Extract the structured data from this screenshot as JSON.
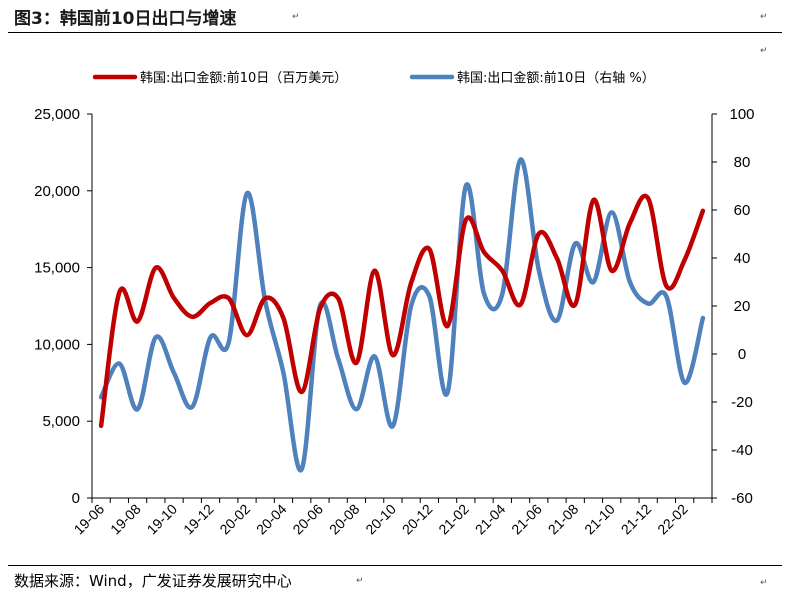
{
  "page": {
    "title": "图3：韩国前10日出口与增速",
    "source": "数据来源：Wind，广发证券发展研究中心",
    "paragraph_mark": "↵"
  },
  "chart_data": {
    "type": "line",
    "title": "韩国前10日出口与增速",
    "categories": [
      "19-06",
      "19-07",
      "19-08",
      "19-09",
      "19-10",
      "19-11",
      "19-12",
      "20-01",
      "20-02",
      "20-03",
      "20-04",
      "20-05",
      "20-06",
      "20-07",
      "20-08",
      "20-09",
      "20-10",
      "20-11",
      "20-12",
      "21-01",
      "21-02",
      "21-03",
      "21-04",
      "21-05",
      "21-06",
      "21-07",
      "21-08",
      "21-09",
      "21-10",
      "21-11",
      "21-12",
      "22-01",
      "22-02",
      "22-03"
    ],
    "x_tick_labels": [
      "19-06",
      "19-08",
      "19-10",
      "19-12",
      "20-02",
      "20-04",
      "20-06",
      "20-08",
      "20-10",
      "20-12",
      "21-02",
      "21-04",
      "21-06",
      "21-08",
      "21-10",
      "21-12",
      "22-02"
    ],
    "series": [
      {
        "name": "韩国:出口金额:前10日（百万美元）",
        "axis": "left",
        "color": "#C00000",
        "values": [
          4700,
          13400,
          11500,
          15000,
          13000,
          11800,
          12700,
          13000,
          10600,
          13000,
          11700,
          6900,
          12300,
          13000,
          8800,
          14800,
          9300,
          14000,
          16200,
          11200,
          18100,
          16000,
          14800,
          12600,
          17200,
          15600,
          12600,
          19400,
          14800,
          17900,
          19500,
          13800,
          15500,
          18700
        ]
      },
      {
        "name": "韩国:出口金额:前10日（右轴 %）",
        "axis": "right",
        "color": "#4F81BD",
        "values": [
          -18,
          -4,
          -23,
          7,
          -8,
          -22,
          7,
          5,
          67,
          22,
          -8,
          -48,
          20,
          -2,
          -23,
          -1,
          -30,
          20,
          24,
          -16,
          70,
          25,
          25,
          81,
          35,
          14,
          46,
          30,
          59,
          30,
          21,
          24,
          -12,
          15
        ]
      }
    ],
    "y_left": {
      "min": 0,
      "max": 25000,
      "ticks": [
        "0",
        "5,000",
        "10,000",
        "15,000",
        "20,000",
        "25,000"
      ]
    },
    "y_right": {
      "min": -60,
      "max": 100,
      "ticks": [
        "-60",
        "-40",
        "-20",
        "0",
        "20",
        "40",
        "60",
        "80",
        "100"
      ]
    },
    "legend_position": "top"
  },
  "colors": {
    "red_series": "#C00000",
    "blue_series": "#4F81BD"
  }
}
